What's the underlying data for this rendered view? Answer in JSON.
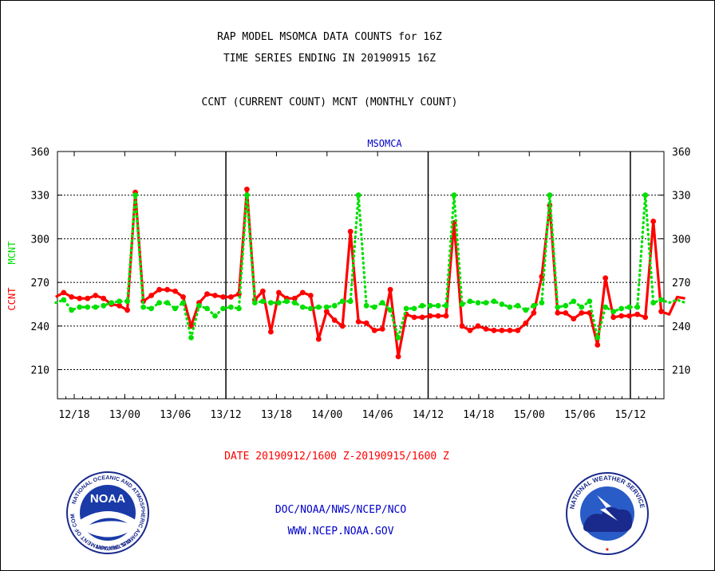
{
  "header": {
    "title_line1": "RAP MODEL MSOMCA DATA COUNTS for 16Z",
    "title_line2": "TIME SERIES ENDING IN 20190915 16Z",
    "title_line3": "CCNT (CURRENT COUNT) MCNT (MONTHLY COUNT)"
  },
  "footer": {
    "date_range": "DATE 20190912/1600 Z-20190915/1600 Z",
    "credit": "DOC/NOAA/NWS/NCEP/NCO",
    "website": "WWW.NCEP.NOAA.GOV"
  },
  "logos": {
    "noaa_text": "NOAA",
    "noaa_ring": "NATIONAL OCEANIC AND ATMOSPHERIC ADMINISTRATION",
    "noaa_ring_bottom": "U.S. DEPARTMENT OF COMMERCE",
    "nws_ring": "NATIONAL WEATHER SERVICE"
  },
  "chart_data": {
    "type": "line",
    "title": "MSOMCA",
    "ylabel_ccnt": "CCNT",
    "ylabel_mcnt": "MCNT",
    "ylim": [
      190,
      360
    ],
    "yticks": [
      210,
      240,
      270,
      300,
      330,
      360
    ],
    "xlim_hours": [
      0,
      72
    ],
    "xtick_labels": [
      "12/18",
      "13/00",
      "13/06",
      "13/12",
      "13/18",
      "14/00",
      "14/06",
      "14/12",
      "14/18",
      "15/00",
      "15/06",
      "15/12"
    ],
    "grid": "horizontal dotted",
    "colors": {
      "ccnt": "#ff0000",
      "mcnt": "#00e000",
      "axis": "#000000",
      "text_blue": "#0000c8",
      "text_red": "#ff0000"
    },
    "series": [
      {
        "name": "CCNT",
        "values": [
          260,
          263,
          260,
          259,
          259,
          261,
          259,
          255,
          254,
          251,
          332,
          257,
          261,
          265,
          265,
          264,
          260,
          240,
          256,
          262,
          261,
          260,
          260,
          262,
          334,
          258,
          264,
          236,
          263,
          259,
          259,
          263,
          261,
          231,
          250,
          244,
          240,
          305,
          243,
          242,
          237,
          238,
          265,
          219,
          248,
          246,
          246,
          247,
          247,
          247,
          311,
          240,
          237,
          240,
          238,
          237,
          237,
          237,
          237,
          242,
          249,
          274,
          323,
          249,
          249,
          245,
          249,
          249,
          227,
          273,
          246,
          247,
          247,
          248,
          246,
          312,
          250,
          248,
          260,
          259
        ]
      },
      {
        "name": "MCNT",
        "values": [
          256,
          258,
          251,
          253,
          253,
          253,
          254,
          256,
          257,
          257,
          330,
          253,
          252,
          256,
          256,
          252,
          256,
          232,
          254,
          252,
          247,
          252,
          253,
          252,
          330,
          256,
          257,
          256,
          256,
          257,
          256,
          253,
          252,
          253,
          253,
          254,
          257,
          257,
          330,
          254,
          253,
          256,
          251,
          232,
          252,
          252,
          254,
          254,
          254,
          254,
          330,
          255,
          257,
          256,
          256,
          257,
          255,
          253,
          254,
          251,
          254,
          256,
          330,
          253,
          254,
          257,
          253,
          257,
          232,
          253,
          250,
          252,
          253,
          253,
          330,
          256,
          258,
          256,
          258,
          256
        ]
      }
    ]
  }
}
